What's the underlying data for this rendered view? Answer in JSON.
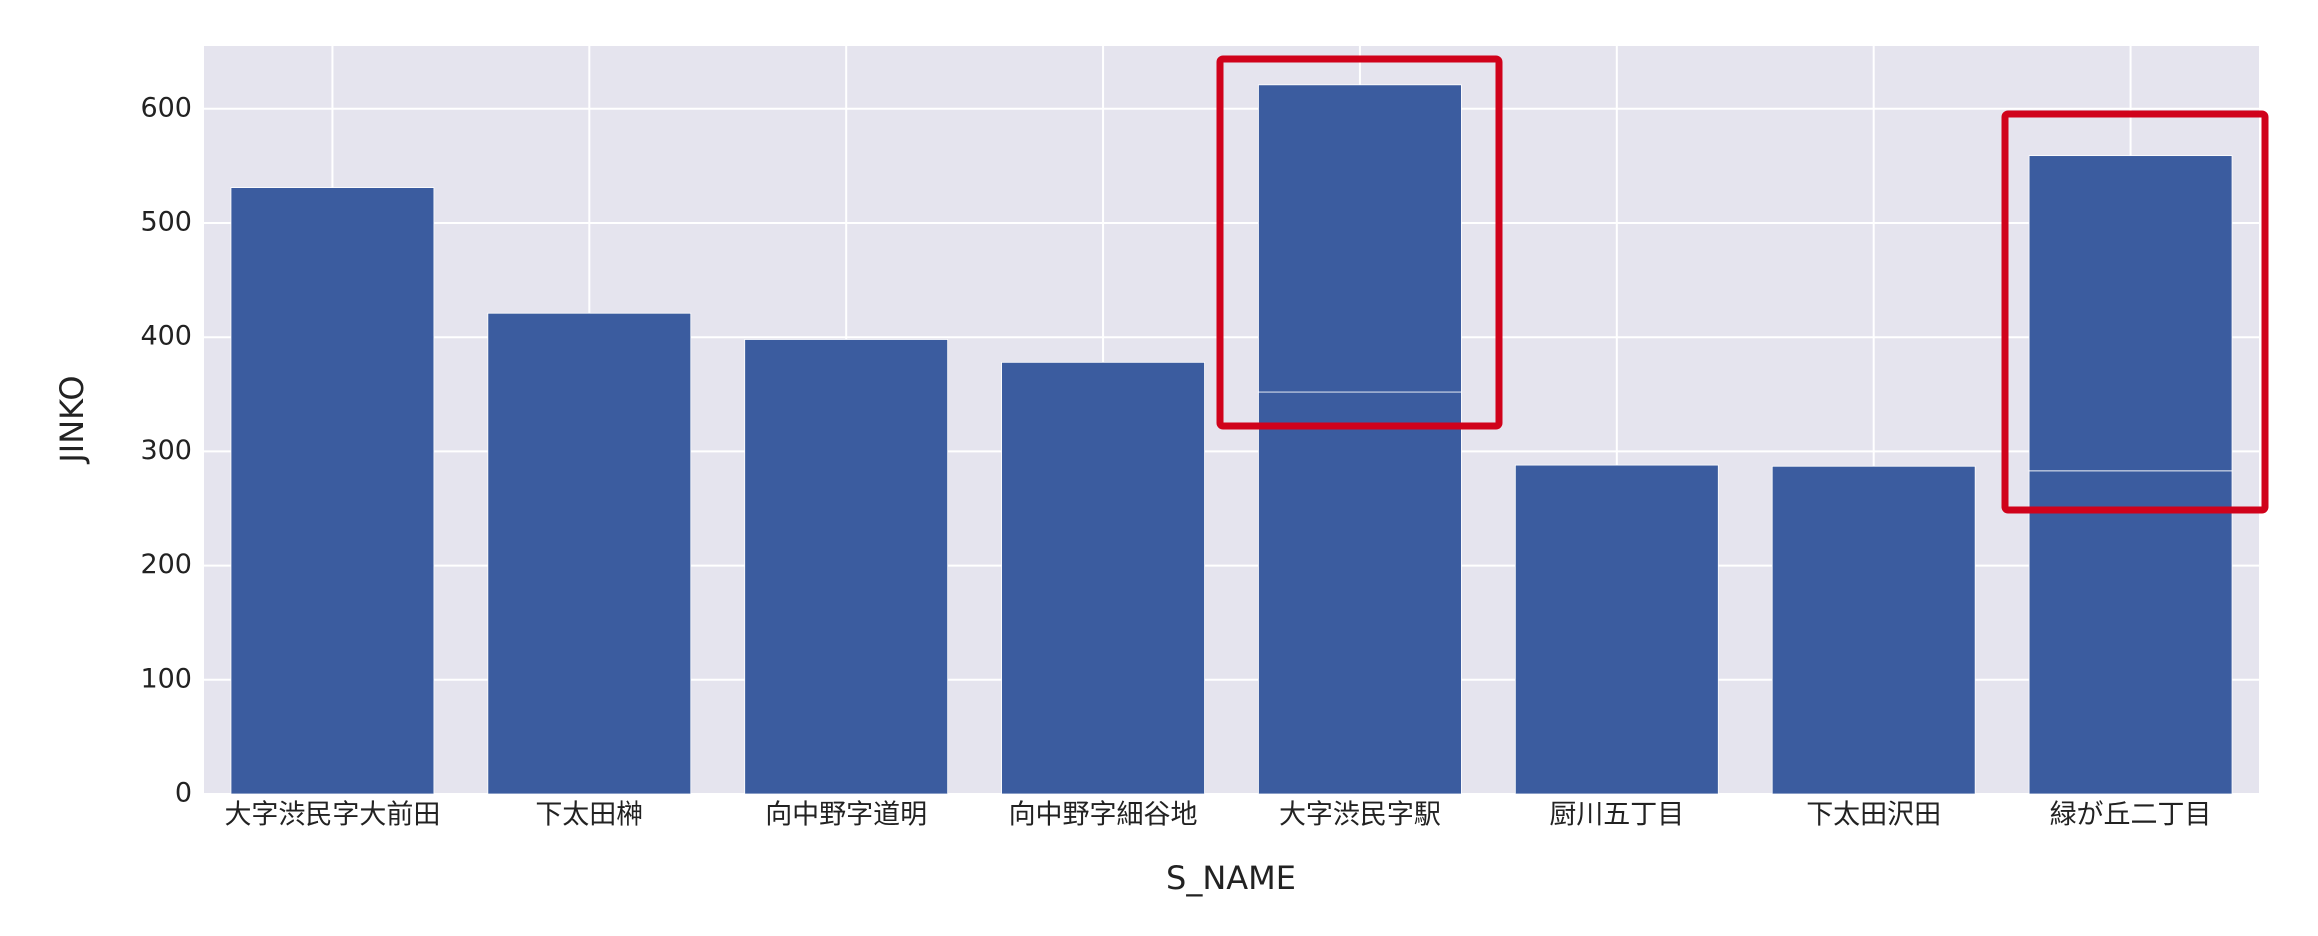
{
  "chart_data": {
    "type": "stacked_bar",
    "categories": [
      "大字渋民字大前田",
      "下太田榊",
      "向中野字道明",
      "向中野字細谷地",
      "大字渋民字駅",
      "厨川五丁目",
      "下太田沢田",
      "緑が丘二丁目"
    ],
    "series": [
      {
        "color": "#3b5c9f",
        "values": [
          531,
          421,
          398,
          378,
          352,
          288,
          287,
          283
        ]
      },
      {
        "color": "#3b5c9f",
        "values": [
          null,
          null,
          null,
          null,
          269,
          null,
          null,
          276
        ]
      }
    ],
    "xlabel": "S_NAME",
    "ylabel": "JINKO",
    "ylim": [
      0,
      655
    ],
    "yticks": [
      0,
      100,
      200,
      300,
      400,
      500,
      600
    ],
    "grid": true
  }
}
